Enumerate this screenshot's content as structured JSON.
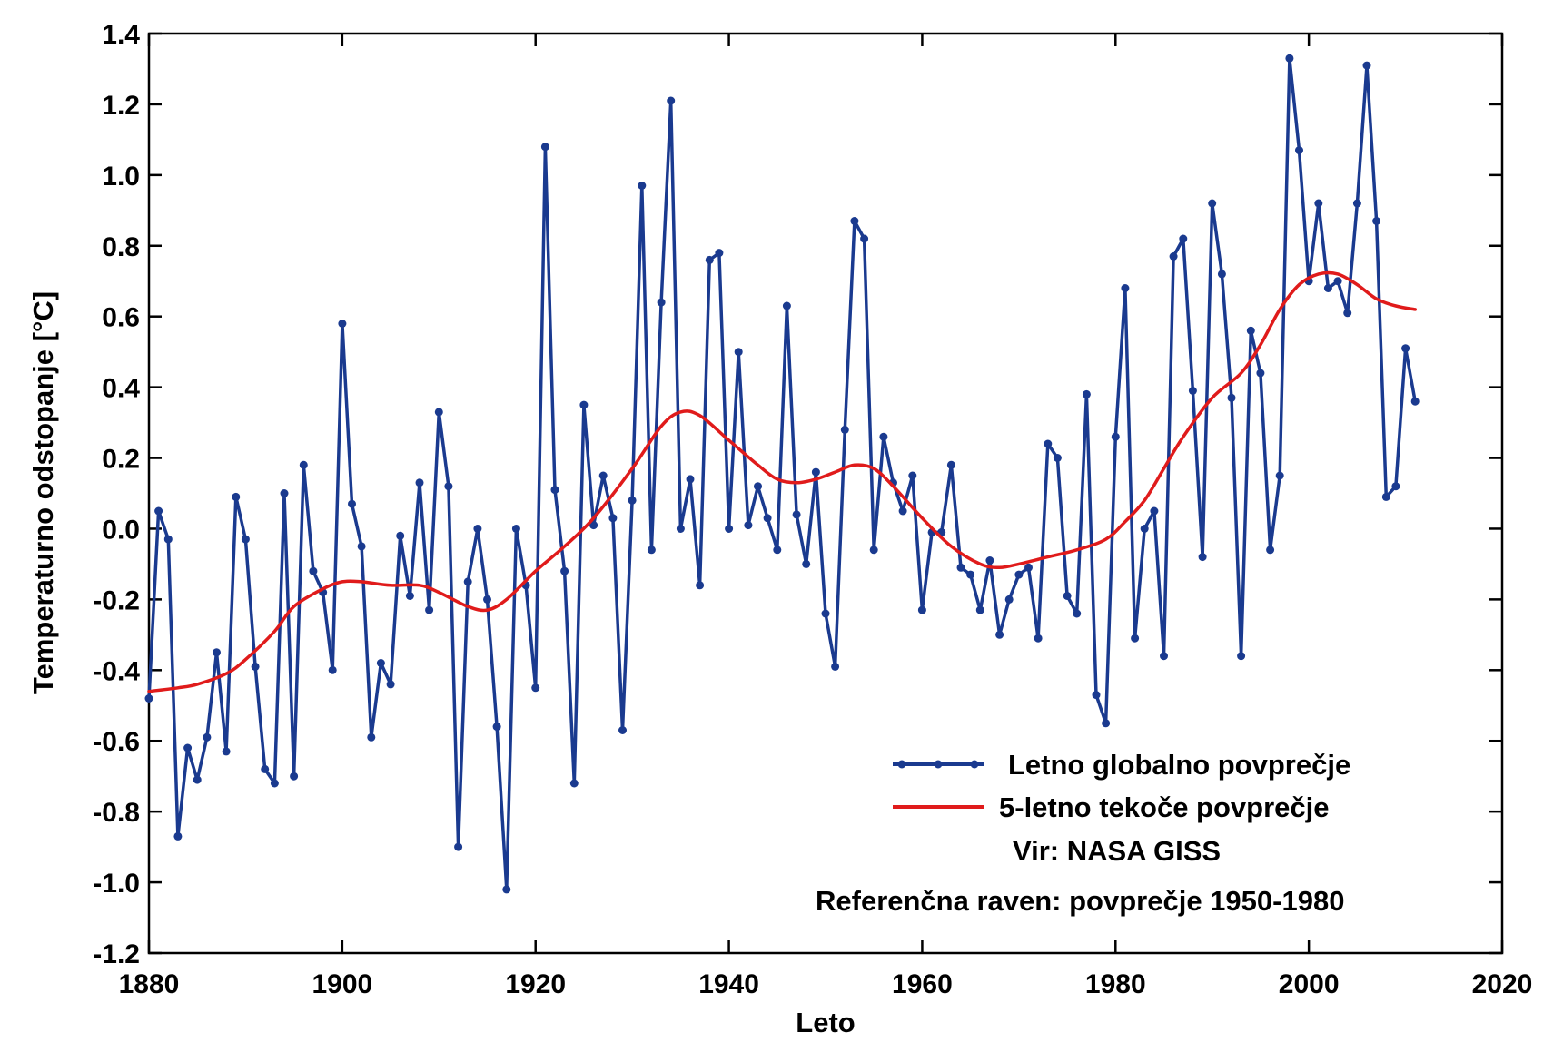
{
  "chart_data": {
    "type": "line",
    "xlabel": "Leto",
    "ylabel": "Temperaturno odstopanje  [°C]",
    "xlim": [
      1880,
      2020
    ],
    "ylim": [
      -1.2,
      1.4
    ],
    "xticks": [
      1880,
      1900,
      1920,
      1940,
      1960,
      1980,
      2000,
      2020
    ],
    "yticks": [
      -1.2,
      -1.0,
      -0.8,
      -0.6,
      -0.4,
      -0.2,
      0.0,
      0.2,
      0.4,
      0.6,
      0.8,
      1.0,
      1.2,
      1.4
    ],
    "ytick_labels": [
      "-1.2",
      "-1.0",
      "-0.8",
      "-0.6",
      "-0.4",
      "-0.2",
      "0.0",
      "0.2",
      "0.4",
      "0.6",
      "0.8",
      "1.0",
      "1.2",
      "1.4"
    ],
    "grid": false,
    "legend_position": "bottom-right",
    "series": [
      {
        "name": "Letno globalno povprečje",
        "color": "#1a3a8f",
        "markers": true,
        "x": [
          1880,
          1881,
          1882,
          1883,
          1884,
          1885,
          1886,
          1887,
          1888,
          1889,
          1890,
          1891,
          1892,
          1893,
          1894,
          1895,
          1896,
          1897,
          1898,
          1899,
          1900,
          1901,
          1902,
          1903,
          1904,
          1905,
          1906,
          1907,
          1908,
          1909,
          1910,
          1911,
          1912,
          1913,
          1914,
          1915,
          1916,
          1917,
          1918,
          1919,
          1920,
          1921,
          1922,
          1923,
          1924,
          1925,
          1926,
          1927,
          1928,
          1929,
          1930,
          1931,
          1932,
          1933,
          1934,
          1935,
          1936,
          1937,
          1938,
          1939,
          1940,
          1941,
          1942,
          1943,
          1944,
          1945,
          1946,
          1947,
          1948,
          1949,
          1950,
          1951,
          1952,
          1953,
          1954,
          1955,
          1956,
          1957,
          1958,
          1959,
          1960,
          1961,
          1962,
          1963,
          1964,
          1965,
          1966,
          1967,
          1968,
          1969,
          1970,
          1971,
          1972,
          1973,
          1974,
          1975,
          1976,
          1977,
          1978,
          1979,
          1980,
          1981,
          1982,
          1983,
          1984,
          1985,
          1986,
          1987,
          1988,
          1989,
          1990,
          1991,
          1992,
          1993,
          1994,
          1995,
          1996,
          1997,
          1998,
          1999,
          2000,
          2001,
          2002,
          2003,
          2004,
          2005,
          2006,
          2007,
          2008,
          2009,
          2010,
          2011
        ],
        "values": [
          -0.48,
          0.05,
          -0.03,
          -0.87,
          -0.62,
          -0.71,
          -0.59,
          -0.35,
          -0.63,
          0.09,
          -0.03,
          -0.39,
          -0.68,
          -0.72,
          0.1,
          -0.7,
          0.18,
          -0.12,
          -0.18,
          -0.4,
          0.58,
          0.07,
          -0.05,
          -0.59,
          -0.38,
          -0.44,
          -0.02,
          -0.19,
          0.13,
          -0.23,
          0.33,
          0.12,
          -0.9,
          -0.15,
          0.0,
          -0.2,
          -0.56,
          -1.02,
          0.0,
          -0.16,
          -0.45,
          1.08,
          0.11,
          -0.12,
          -0.72,
          0.35,
          0.01,
          0.15,
          0.03,
          -0.57,
          0.08,
          0.97,
          -0.06,
          0.64,
          1.21,
          0.0,
          0.14,
          -0.16,
          0.76,
          0.78,
          0.0,
          0.5,
          0.01,
          0.12,
          0.03,
          -0.06,
          0.63,
          0.04,
          -0.1,
          0.16,
          -0.24,
          -0.39,
          0.28,
          0.87,
          0.82,
          -0.06,
          0.26,
          0.13,
          0.05,
          0.15,
          -0.23,
          -0.01,
          -0.01,
          0.18,
          -0.11,
          -0.13,
          -0.23,
          -0.09,
          -0.3,
          -0.2,
          -0.13,
          -0.11,
          -0.31,
          0.24,
          0.2,
          -0.19,
          -0.24,
          0.38,
          -0.47,
          -0.55,
          0.26,
          0.68,
          -0.31,
          0.0,
          0.05,
          -0.36,
          0.77,
          0.82,
          0.39,
          -0.08,
          0.92,
          0.72,
          0.37,
          -0.36,
          0.56,
          0.44,
          -0.06,
          0.15,
          1.33,
          1.07,
          0.7,
          0.92,
          0.68,
          0.7,
          0.61,
          0.92,
          1.31,
          0.87,
          0.09,
          0.12,
          0.51,
          0.36
        ]
      },
      {
        "name": "5-letno tekoče povprečje",
        "color": "#e01b1b",
        "markers": false,
        "x": [
          1880,
          1883,
          1885,
          1888,
          1890,
          1893,
          1895,
          1898,
          1900,
          1902,
          1905,
          1908,
          1910,
          1913,
          1915,
          1917,
          1920,
          1923,
          1926,
          1930,
          1933,
          1935,
          1937,
          1940,
          1943,
          1945,
          1947,
          1949,
          1951,
          1953,
          1955,
          1957,
          1960,
          1963,
          1966,
          1968,
          1970,
          1973,
          1976,
          1979,
          1981,
          1983,
          1985,
          1987,
          1990,
          1993,
          1995,
          1997,
          1999,
          2001,
          2003,
          2005,
          2007,
          2009,
          2011
        ],
        "values": [
          -0.46,
          -0.45,
          -0.44,
          -0.41,
          -0.37,
          -0.29,
          -0.22,
          -0.17,
          -0.15,
          -0.15,
          -0.16,
          -0.16,
          -0.18,
          -0.22,
          -0.23,
          -0.2,
          -0.12,
          -0.05,
          0.03,
          0.17,
          0.29,
          0.33,
          0.32,
          0.25,
          0.18,
          0.14,
          0.13,
          0.14,
          0.16,
          0.18,
          0.17,
          0.12,
          0.03,
          -0.05,
          -0.1,
          -0.11,
          -0.1,
          -0.08,
          -0.06,
          -0.03,
          0.02,
          0.08,
          0.17,
          0.26,
          0.37,
          0.44,
          0.52,
          0.62,
          0.69,
          0.72,
          0.72,
          0.69,
          0.65,
          0.63,
          0.62
        ]
      }
    ],
    "annotations": [
      "Vir: NASA GISS",
      "Referenčna raven: povprečje 1950-1980"
    ]
  }
}
